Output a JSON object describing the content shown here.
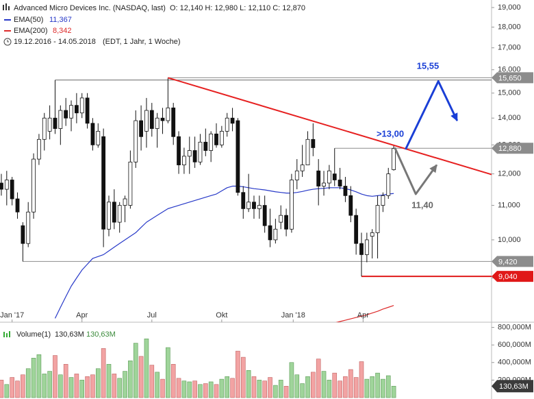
{
  "chart_data": [
    {
      "type": "candlestick",
      "title": "Advanced Micro Devices Inc. (NASDAQ, last)",
      "ohlc_label": "O: 12,140  H: 12,980  L: 12,110  C: 12,870",
      "subtitle": "19.12.2016 - 14.05.2018",
      "note": "(EDT, 1 Jahr, 1 Woche)",
      "x": [
        0,
        1,
        2,
        3,
        4,
        5,
        6,
        7,
        8,
        9,
        10,
        11,
        12,
        13,
        14,
        15,
        16,
        17,
        18,
        19,
        20,
        21,
        22,
        23,
        24,
        25,
        26,
        27,
        28,
        29,
        30,
        31,
        32,
        33,
        34,
        35,
        36,
        37,
        38,
        39,
        40,
        41,
        42,
        43,
        44,
        45,
        46,
        47,
        48,
        49,
        50,
        51,
        52,
        53,
        54,
        55,
        56,
        57,
        58,
        59,
        60,
        61,
        62,
        63,
        64,
        65,
        66,
        67,
        68,
        69,
        70,
        71,
        72,
        73
      ],
      "open": [
        11.7,
        11.5,
        11.8,
        11.2,
        10.4,
        9.9,
        10.8,
        12.5,
        13.2,
        13.5,
        14.0,
        13.6,
        14.3,
        14.0,
        14.5,
        14.2,
        14.8,
        13.8,
        13.0,
        13.3,
        10.3,
        11.1,
        10.5,
        11.0,
        11.0,
        12.4,
        13.9,
        13.5,
        14.3,
        13.6,
        14.0,
        13.9,
        14.4,
        13.3,
        12.3,
        12.6,
        12.8,
        12.4,
        13.1,
        12.8,
        13.4,
        13.0,
        13.5,
        14.0,
        13.9,
        11.4,
        10.9,
        11.1,
        10.9,
        11.0,
        10.4,
        10.0,
        10.5,
        10.7,
        10.3,
        11.8,
        12.1,
        12.3,
        13.2,
        12.1,
        11.6,
        11.7,
        12.0,
        11.8,
        11.6,
        11.3,
        10.7,
        9.9,
        9.6,
        10.1,
        10.2,
        11.0,
        11.3,
        12.14
      ],
      "high": [
        12.0,
        12.1,
        11.9,
        11.4,
        10.5,
        11.1,
        12.7,
        13.4,
        14.2,
        14.5,
        15.55,
        14.5,
        14.8,
        14.7,
        15.0,
        15.0,
        15.0,
        14.0,
        13.8,
        13.6,
        11.3,
        11.5,
        11.1,
        11.3,
        12.8,
        14.3,
        14.5,
        14.8,
        14.6,
        14.2,
        14.4,
        15.65,
        14.6,
        13.5,
        12.9,
        13.3,
        13.3,
        13.4,
        13.6,
        13.5,
        13.8,
        13.7,
        14.2,
        14.4,
        14.0,
        11.6,
        12.0,
        11.3,
        11.3,
        11.3,
        10.9,
        10.6,
        11.0,
        10.9,
        12.0,
        12.5,
        13.0,
        13.5,
        13.8,
        12.5,
        12.1,
        12.3,
        12.88,
        12.2,
        11.9,
        11.6,
        10.9,
        10.2,
        10.2,
        10.3,
        11.3,
        11.4,
        12.2,
        12.98
      ],
      "low": [
        11.3,
        11.0,
        11.0,
        10.6,
        9.42,
        9.8,
        10.6,
        12.3,
        12.8,
        13.2,
        13.4,
        13.0,
        13.7,
        13.5,
        13.8,
        14.0,
        13.6,
        12.8,
        12.9,
        9.8,
        10.1,
        10.3,
        10.2,
        10.5,
        10.9,
        12.2,
        12.8,
        12.9,
        13.3,
        12.9,
        13.4,
        13.8,
        13.0,
        12.0,
        12.0,
        12.0,
        12.2,
        12.3,
        12.6,
        12.4,
        12.9,
        12.9,
        13.3,
        13.5,
        11.3,
        10.6,
        10.8,
        10.6,
        10.6,
        10.2,
        9.8,
        9.9,
        10.3,
        10.1,
        10.2,
        11.5,
        11.9,
        12.3,
        12.6,
        11.0,
        11.3,
        11.5,
        11.6,
        11.5,
        11.1,
        10.5,
        9.6,
        9.04,
        9.4,
        9.5,
        9.5,
        10.8,
        11.2,
        12.11
      ],
      "close": [
        11.5,
        11.8,
        11.2,
        10.8,
        9.9,
        10.8,
        12.5,
        13.2,
        14.0,
        14.0,
        13.6,
        14.3,
        14.0,
        14.5,
        14.2,
        14.8,
        13.8,
        13.0,
        13.5,
        10.3,
        11.1,
        10.5,
        11.0,
        11.2,
        12.4,
        13.9,
        13.3,
        14.3,
        13.6,
        14.0,
        13.9,
        14.4,
        13.3,
        12.3,
        12.6,
        12.8,
        12.4,
        13.1,
        12.8,
        13.4,
        13.0,
        13.5,
        14.0,
        13.8,
        11.4,
        10.9,
        11.1,
        10.9,
        11.0,
        10.4,
        10.0,
        10.3,
        10.7,
        10.3,
        11.8,
        12.1,
        12.3,
        13.2,
        12.9,
        11.6,
        11.7,
        12.1,
        11.8,
        11.6,
        11.3,
        10.7,
        9.9,
        9.6,
        10.0,
        10.2,
        11.0,
        11.3,
        12.0,
        12.87
      ],
      "series": [
        {
          "name": "EMA(50)",
          "value_label": "11,367",
          "color": "#2638c8",
          "values": [
            null,
            null,
            null,
            null,
            null,
            null,
            null,
            null,
            null,
            null,
            8.05,
            8.3,
            8.55,
            8.8,
            9.0,
            9.2,
            9.35,
            9.5,
            9.55,
            9.6,
            9.7,
            9.8,
            9.9,
            10.0,
            10.1,
            10.2,
            10.35,
            10.5,
            10.6,
            10.7,
            10.8,
            10.9,
            10.95,
            11.0,
            11.05,
            11.1,
            11.15,
            11.2,
            11.25,
            11.3,
            11.35,
            11.45,
            11.55,
            11.6,
            11.6,
            11.58,
            11.55,
            11.52,
            11.5,
            11.48,
            11.45,
            11.42,
            11.4,
            11.38,
            11.38,
            11.4,
            11.43,
            11.47,
            11.5,
            11.52,
            11.53,
            11.55,
            11.55,
            11.55,
            11.52,
            11.48,
            11.42,
            11.35,
            11.3,
            11.28,
            11.3,
            11.32,
            11.35,
            11.367
          ]
        },
        {
          "name": "EMA(200)",
          "value_label": "8,342",
          "color": "#dd2a2a",
          "values": [
            null,
            null,
            null,
            null,
            null,
            null,
            null,
            null,
            null,
            null,
            null,
            null,
            null,
            null,
            null,
            null,
            null,
            null,
            null,
            null,
            null,
            null,
            null,
            null,
            null,
            null,
            null,
            null,
            null,
            null,
            null,
            null,
            null,
            null,
            null,
            null,
            null,
            null,
            null,
            null,
            null,
            null,
            null,
            null,
            null,
            null,
            null,
            null,
            null,
            null,
            null,
            null,
            null,
            null,
            null,
            null,
            null,
            null,
            null,
            null,
            null,
            7.92,
            7.95,
            7.98,
            8.01,
            8.04,
            8.07,
            8.1,
            8.13,
            8.17,
            8.21,
            8.26,
            8.3,
            8.342
          ]
        }
      ],
      "levels": [
        {
          "value": 15.55,
          "start": 10
        },
        {
          "value": 15.65,
          "start": 31,
          "label": "15,650",
          "color": "#8c8c8c"
        },
        {
          "value": 12.88,
          "start": 62,
          "label": "12,880",
          "color": "#8c8c8c"
        },
        {
          "value": 9.42,
          "start": 4,
          "label": "9,420",
          "color": "#8c8c8c"
        },
        {
          "value": 9.04,
          "start": 67,
          "label": "9,040",
          "color": "#e01818"
        }
      ],
      "trendline": {
        "color": "#e62020",
        "x": [
          31,
          91.2
        ],
        "values": [
          15.65,
          11.98
        ]
      },
      "forecasts": [
        {
          "color": "#1a3fd6",
          "x": [
            75.2,
            81.3,
            84.8
          ],
          "values": [
            12.84,
            15.5,
            13.9
          ]
        },
        {
          "color": "#777777",
          "x": [
            73.2,
            77.1,
            81
          ],
          "values": [
            12.9,
            11.35,
            12.3
          ]
        }
      ],
      "annotations": [
        {
          "text": ">13,00",
          "color": "#1a3fd6"
        },
        {
          "text": "15,55",
          "color": "#1a3fd6"
        },
        {
          "text": "11,40",
          "color": "#666666"
        }
      ],
      "xlim": [
        -0.25,
        91.2
      ],
      "xticks": [
        {
          "value": 2,
          "label": "Jan '17"
        },
        {
          "value": 15,
          "label": "Apr"
        },
        {
          "value": 28,
          "label": "Jul"
        },
        {
          "value": 41,
          "label": "Okt"
        },
        {
          "value": 54.3,
          "label": "Jan '18"
        },
        {
          "value": 67.3,
          "label": "Apr"
        }
      ],
      "log_scale": true,
      "ylim": [
        7.89,
        19.4
      ],
      "yticks": [
        {
          "value": 9,
          "label": "9,000"
        },
        {
          "value": 10,
          "label": "10,000"
        },
        {
          "value": 11,
          "label": "11,000"
        },
        {
          "value": 12,
          "label": "12,000"
        },
        {
          "value": 13,
          "label": "13,000"
        },
        {
          "value": 14,
          "label": "14,000"
        },
        {
          "value": 15,
          "label": "15,000"
        },
        {
          "value": 16,
          "label": "16,000"
        },
        {
          "value": 17,
          "label": "17,000"
        },
        {
          "value": 18,
          "label": "18,000"
        },
        {
          "value": 19,
          "label": "19,000"
        }
      ]
    },
    {
      "type": "bar",
      "legend": "Volume(1)",
      "value_label": "130,63M",
      "up_color": "#9fd49a",
      "down_color": "#f2a3a3",
      "values": [
        200,
        150,
        230,
        190,
        260,
        330,
        450,
        490,
        270,
        300,
        480,
        260,
        380,
        230,
        270,
        200,
        240,
        260,
        330,
        560,
        380,
        270,
        220,
        300,
        420,
        620,
        470,
        670,
        370,
        290,
        210,
        570,
        380,
        220,
        190,
        180,
        190,
        150,
        160,
        180,
        150,
        210,
        240,
        220,
        530,
        460,
        310,
        240,
        200,
        190,
        230,
        140,
        200,
        130,
        400,
        260,
        160,
        240,
        290,
        440,
        300,
        200,
        280,
        190,
        240,
        320,
        230,
        410,
        210,
        240,
        280,
        210,
        250,
        130.63
      ],
      "ylim": [
        0,
        820
      ],
      "yticks": [
        {
          "value": 200,
          "label": "200,000M"
        },
        {
          "value": 400,
          "label": "400,000M"
        },
        {
          "value": 600,
          "label": "600,000M"
        },
        {
          "value": 800,
          "label": "800,000M"
        }
      ]
    }
  ]
}
